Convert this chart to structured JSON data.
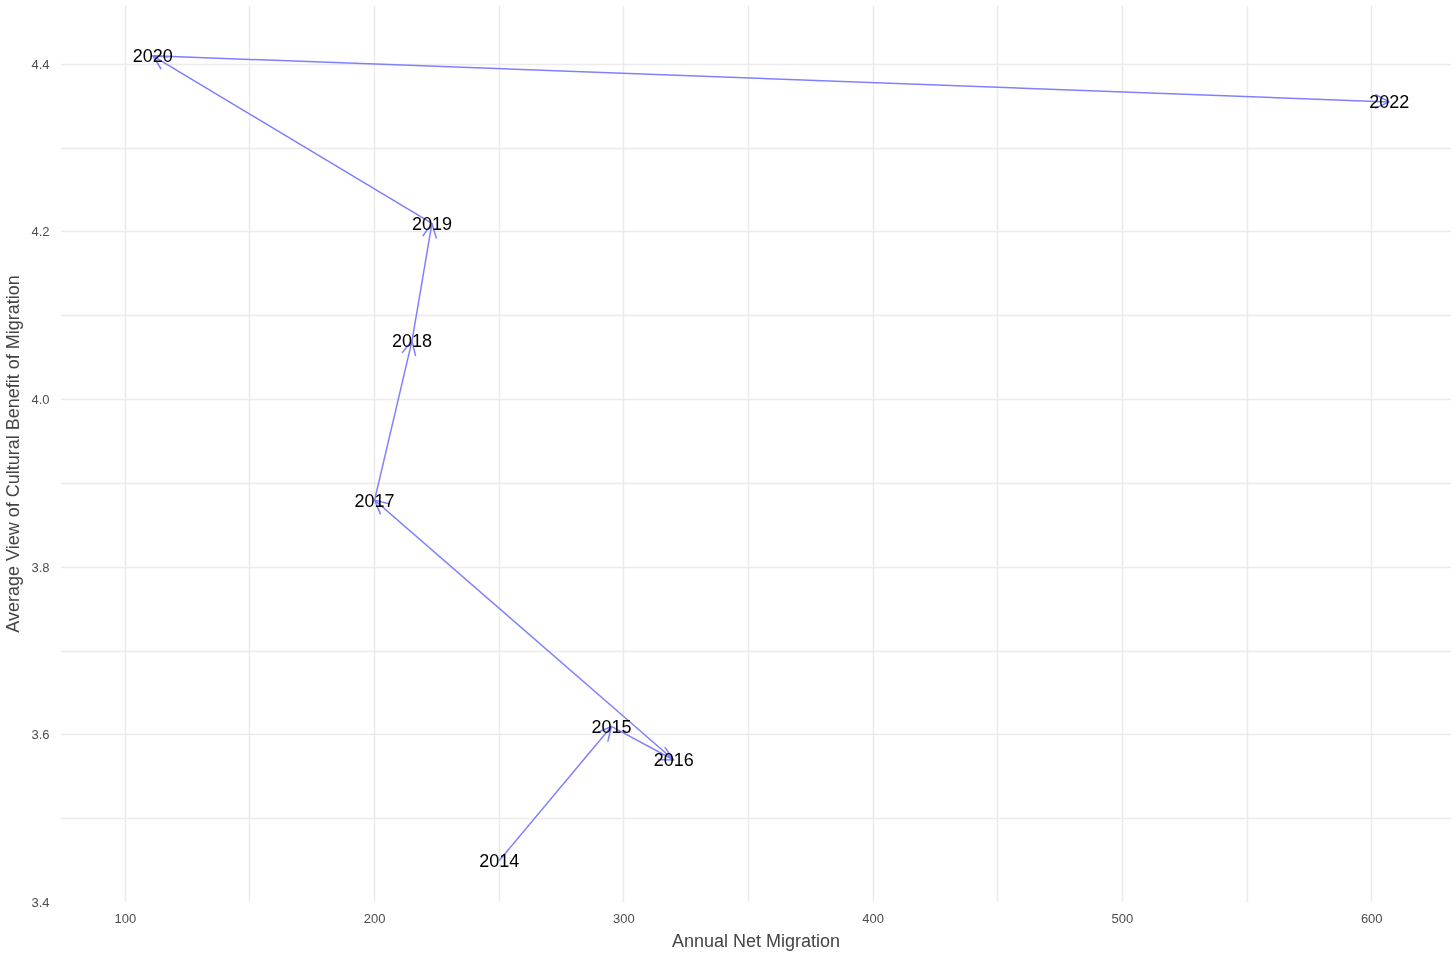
{
  "chart_data": {
    "type": "line",
    "xlabel": "Annual Net Migration",
    "ylabel": "Average View of Cultural Benefit of Migration",
    "series": [
      {
        "color": "#8080ff",
        "x": [
          250,
          295,
          320,
          200,
          215,
          223,
          111,
          607
        ],
        "values": [
          3.45,
          3.61,
          3.57,
          3.88,
          4.07,
          4.21,
          4.41,
          4.355
        ]
      }
    ],
    "annotations": [
      {
        "text": "2014",
        "x": 250,
        "y": 3.45
      },
      {
        "text": "2015",
        "x": 295,
        "y": 3.61
      },
      {
        "text": "2016",
        "x": 320,
        "y": 3.57
      },
      {
        "text": "2017",
        "x": 200,
        "y": 3.88
      },
      {
        "text": "2018",
        "x": 215,
        "y": 4.07
      },
      {
        "text": "2019",
        "x": 223,
        "y": 4.21
      },
      {
        "text": "2020",
        "x": 111,
        "y": 4.41
      },
      {
        "text": "2022",
        "x": 607,
        "y": 4.355
      }
    ],
    "xlim": [
      74,
      632
    ],
    "ylim": [
      3.4,
      4.47
    ],
    "xticks": [
      100,
      {
        "value": 150,
        "label": null
      },
      200,
      {
        "value": 250,
        "label": null
      },
      300,
      {
        "value": 350,
        "label": null
      },
      400,
      {
        "value": 450,
        "label": null
      },
      500,
      {
        "value": 550,
        "label": null
      },
      600
    ],
    "yticks": [
      3.4,
      {
        "value": 3.5,
        "label": null
      },
      3.6,
      {
        "value": 3.7,
        "label": null
      },
      3.8,
      {
        "value": 3.9,
        "label": null
      },
      {
        "value": 4.0,
        "label": "4.0"
      },
      {
        "value": 4.1,
        "label": null
      },
      4.2,
      {
        "value": 4.3,
        "label": null
      },
      4.4
    ],
    "grid": true,
    "marker": "none",
    "line_style": "solid"
  }
}
